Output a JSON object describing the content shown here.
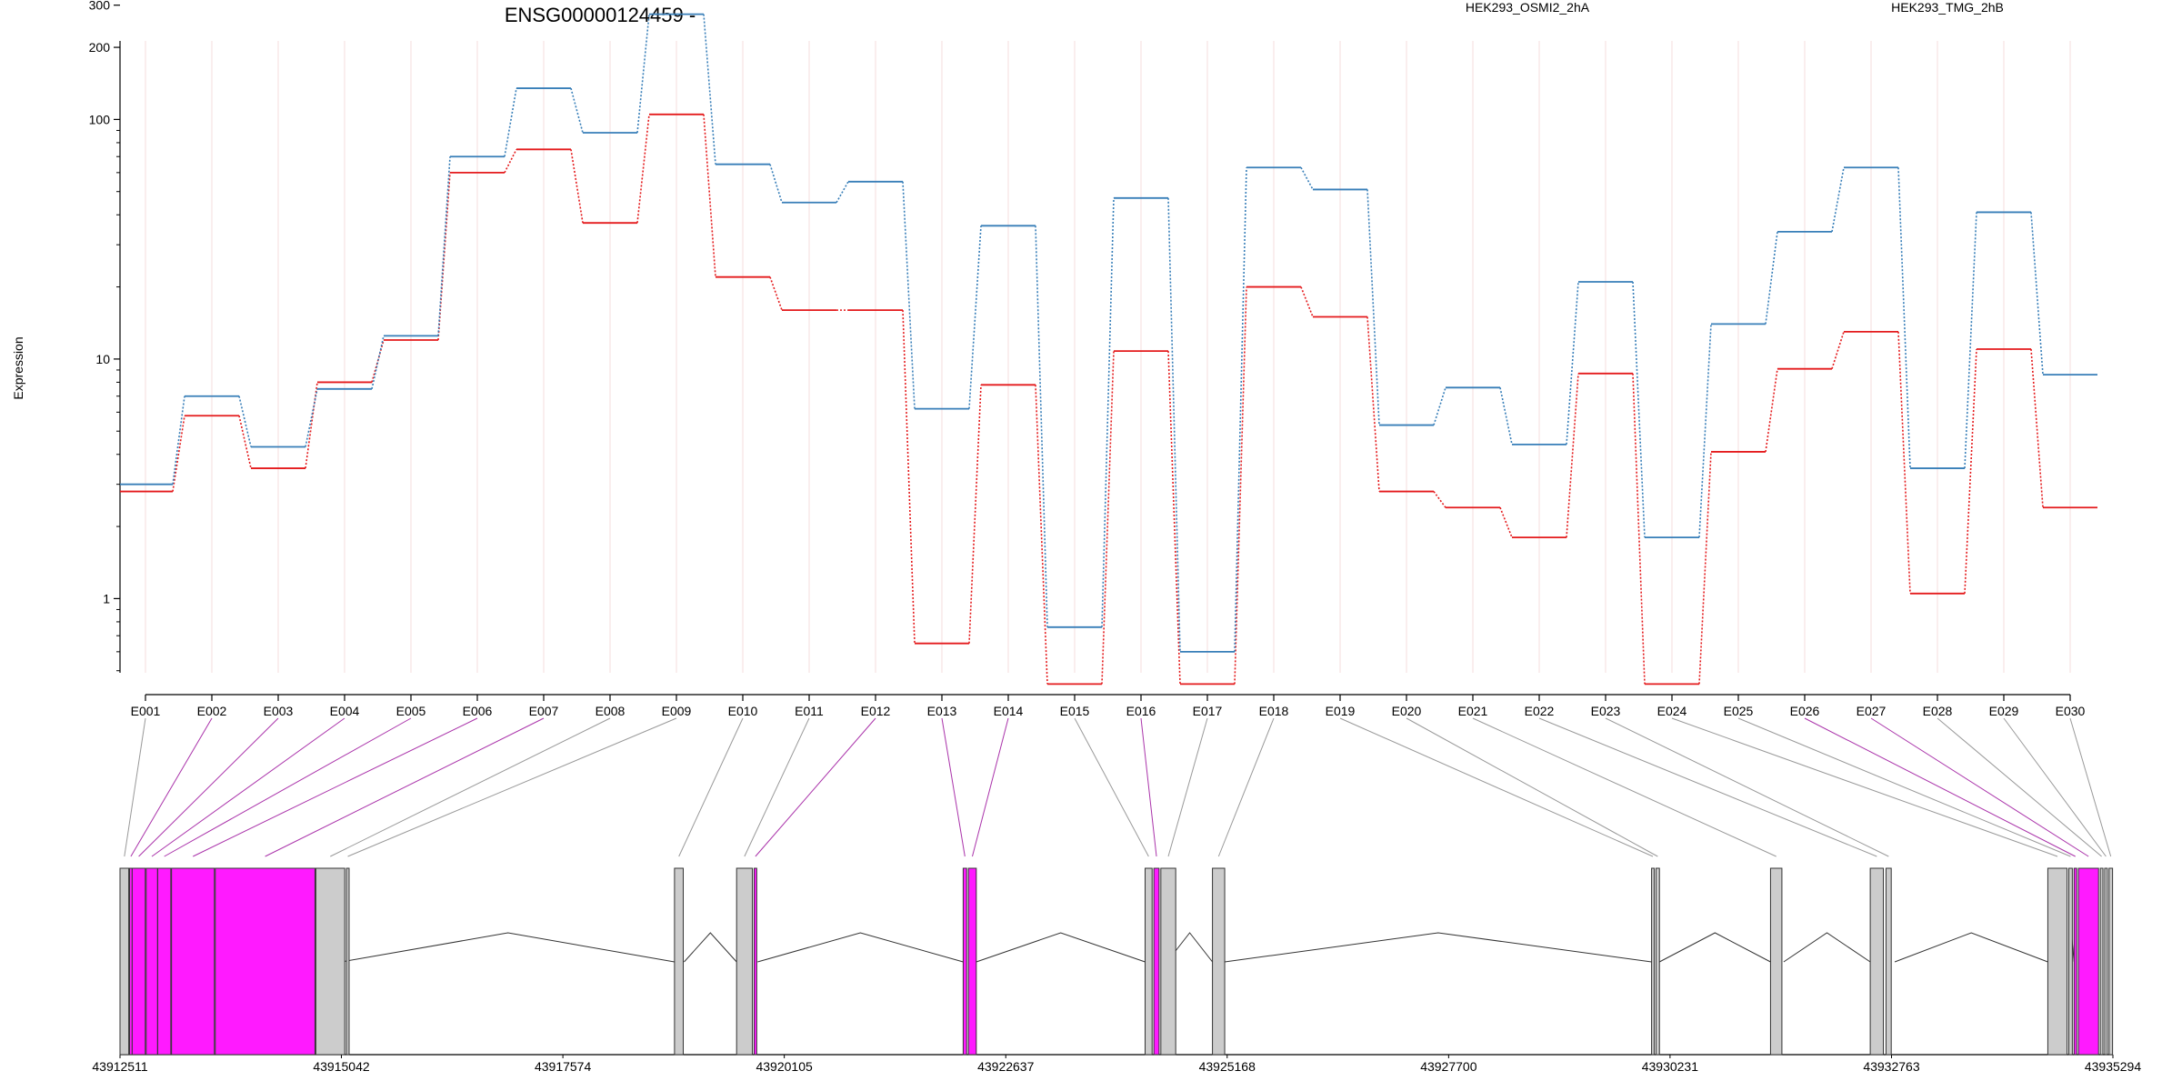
{
  "chart_data": {
    "type": "line",
    "title": "ENSG00000124459 -",
    "ylabel": "Expression",
    "xlabel": "",
    "y_scale": "log",
    "ylim": [
      0.4,
      400
    ],
    "y_ticks": [
      1,
      10,
      100,
      200,
      300
    ],
    "y_tick_labels": [
      "1",
      "10",
      "100",
      "200",
      "300"
    ],
    "legend_placement": "top",
    "grid": "vertical lines at each exon (faint pink)",
    "categories": [
      "E001",
      "E002",
      "E003",
      "E004",
      "E005",
      "E006",
      "E007",
      "E008",
      "E009",
      "E010",
      "E011",
      "E012",
      "E013",
      "E014",
      "E015",
      "E016",
      "E017",
      "E018",
      "E019",
      "E020",
      "E021",
      "E022",
      "E023",
      "E024",
      "E025",
      "E026",
      "E027",
      "E028",
      "E029",
      "E030"
    ],
    "series": [
      {
        "name": "HEK293_OSMI2_2hA",
        "color": "#e41a1c",
        "values": [
          2.8,
          5.8,
          3.5,
          8.0,
          12.0,
          60,
          75,
          37,
          105,
          22,
          16,
          16,
          0.65,
          7.8,
          0.44,
          10.8,
          0.44,
          20,
          15,
          2.8,
          2.4,
          1.8,
          8.7,
          0.44,
          4.1,
          9.1,
          13,
          1.05,
          11,
          2.4
        ]
      },
      {
        "name": "HEK293_TMG_2hB",
        "color": "#377eb8",
        "values": [
          3.0,
          7.0,
          4.3,
          7.5,
          12.5,
          70,
          135,
          88,
          275,
          65,
          45,
          55,
          6.2,
          36,
          0.76,
          47,
          0.6,
          63,
          51,
          5.3,
          7.6,
          4.4,
          21,
          1.8,
          14,
          34,
          63,
          3.5,
          41,
          8.6
        ]
      }
    ],
    "colors": {
      "background": "#ffffff",
      "exon_differential": "#ff1aff",
      "exon_normal": "#cccccc",
      "connector_diff": "#aa33aa",
      "connector_normal": "#999999"
    },
    "gene_model": {
      "axis_labels": [
        "43912511",
        "43915042",
        "43917574",
        "43920105",
        "43922637",
        "43925168",
        "43927700",
        "43930231",
        "43932763",
        "43935294"
      ],
      "exon_start_coords": [
        43912511,
        43912620,
        43912650,
        43912810,
        43912942,
        43913100,
        43913600,
        43914750,
        43915100,
        43918850,
        43919560,
        43919760,
        43922150,
        43922210,
        43924230,
        43924330,
        43924410,
        43925000,
        43930020,
        43930070,
        43931380,
        43932520,
        43932700,
        43934550,
        43934790,
        43934850,
        43934900,
        43935150,
        43935200,
        43935250
      ],
      "differential_exons": [
        "E002",
        "E003",
        "E004",
        "E005",
        "E006",
        "E007",
        "E012",
        "E013",
        "E014",
        "E016",
        "E026",
        "E027"
      ]
    }
  }
}
